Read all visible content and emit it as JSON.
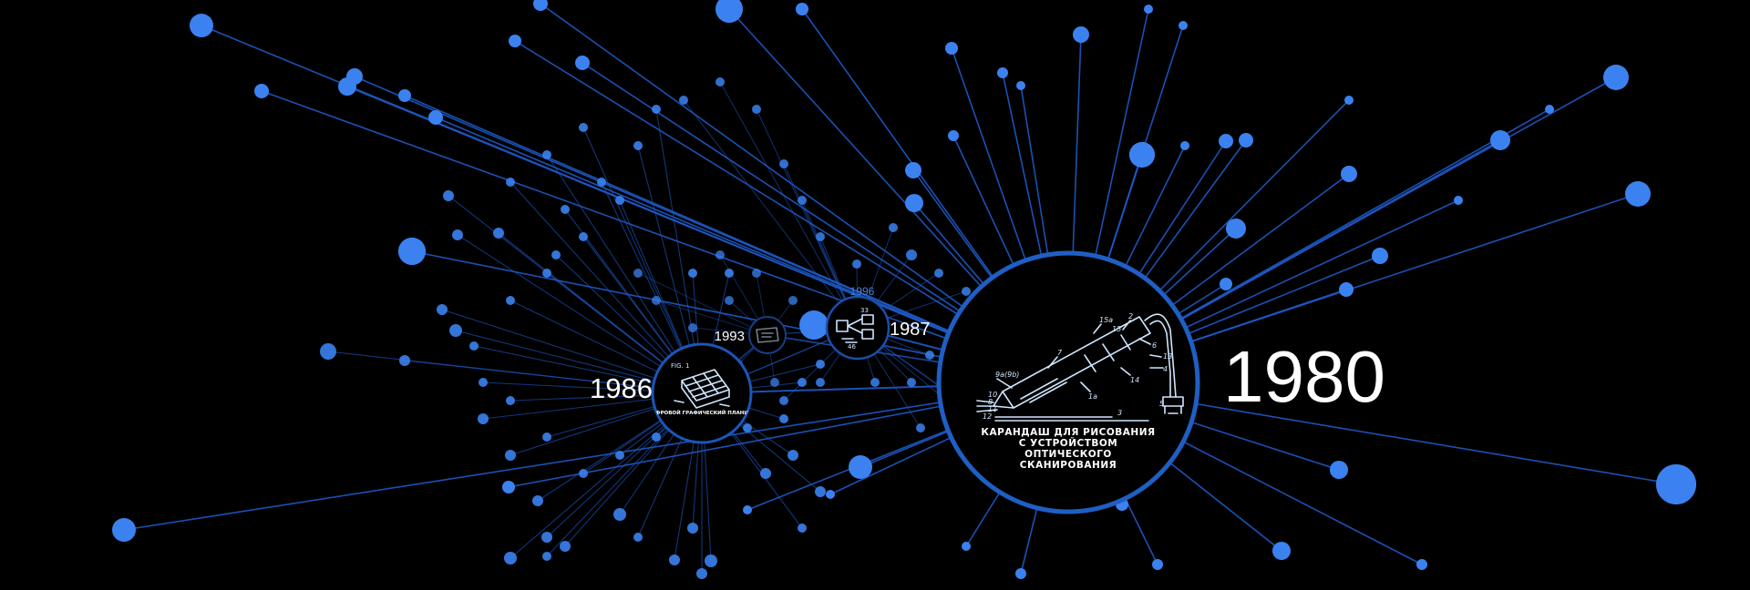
{
  "graph": {
    "colors": {
      "background": "#000000",
      "edge": "#1e5ac8",
      "node": "#3b82f0",
      "ring": "#1f5fc4",
      "text": "#ffffff"
    }
  },
  "hubs": {
    "main": {
      "year": "1980",
      "caption_lines": [
        "КАРАНДАШ ДЛЯ РИСОВАНИЯ",
        "С УСТРОЙСТВОМ",
        "ОПТИЧЕСКОГО",
        "СКАНИРОВАНИЯ"
      ],
      "drawing_icon": "light-pen-patent-drawing-icon"
    },
    "h1986": {
      "year": "1986",
      "caption": "ЦИФРОВОЙ ГРАФИЧЕСКИЙ ПЛАНШЕТ",
      "drawing_icon": "graphics-tablet-patent-drawing-icon"
    },
    "h1987": {
      "year": "1987",
      "drawing_icon": "circuit-patent-drawing-icon"
    },
    "h1993": {
      "year": "1993",
      "drawing_icon": "device-patent-drawing-icon"
    },
    "h1996": {
      "year": "1996"
    }
  }
}
